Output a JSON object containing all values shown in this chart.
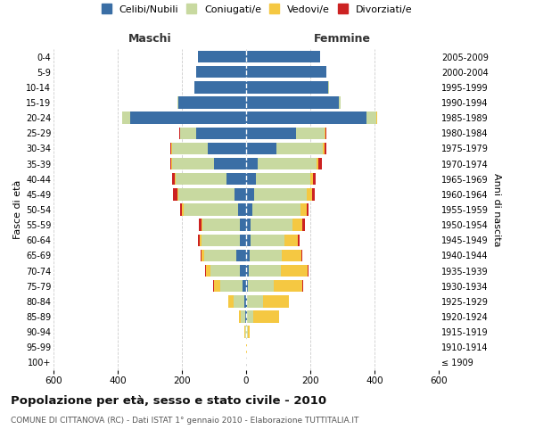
{
  "age_groups": [
    "100+",
    "95-99",
    "90-94",
    "85-89",
    "80-84",
    "75-79",
    "70-74",
    "65-69",
    "60-64",
    "55-59",
    "50-54",
    "45-49",
    "40-44",
    "35-39",
    "30-34",
    "25-29",
    "20-24",
    "15-19",
    "10-14",
    "5-9",
    "0-4"
  ],
  "birth_years": [
    "≤ 1909",
    "1910-1914",
    "1915-1919",
    "1920-1924",
    "1925-1929",
    "1930-1934",
    "1935-1939",
    "1940-1944",
    "1945-1949",
    "1950-1954",
    "1955-1959",
    "1960-1964",
    "1965-1969",
    "1970-1974",
    "1975-1979",
    "1980-1984",
    "1985-1989",
    "1990-1994",
    "1995-1999",
    "2000-2004",
    "2005-2009"
  ],
  "male": {
    "celibi": [
      0,
      0,
      1,
      3,
      5,
      10,
      20,
      30,
      20,
      20,
      25,
      35,
      60,
      100,
      120,
      155,
      360,
      210,
      160,
      155,
      150
    ],
    "coniugati": [
      0,
      1,
      3,
      15,
      35,
      70,
      90,
      100,
      120,
      115,
      170,
      175,
      160,
      130,
      110,
      50,
      25,
      5,
      2,
      0,
      0
    ],
    "vedovi": [
      0,
      0,
      2,
      5,
      15,
      20,
      15,
      10,
      5,
      5,
      5,
      5,
      3,
      2,
      2,
      1,
      1,
      0,
      0,
      0,
      0
    ],
    "divorziati": [
      0,
      0,
      0,
      0,
      1,
      2,
      2,
      3,
      5,
      8,
      5,
      12,
      8,
      5,
      3,
      1,
      1,
      0,
      0,
      0,
      0
    ]
  },
  "female": {
    "nubili": [
      0,
      0,
      1,
      2,
      3,
      5,
      8,
      12,
      15,
      15,
      20,
      25,
      30,
      35,
      95,
      155,
      375,
      290,
      255,
      250,
      230
    ],
    "coniugate": [
      0,
      1,
      5,
      20,
      50,
      80,
      100,
      100,
      105,
      130,
      150,
      165,
      170,
      185,
      145,
      90,
      30,
      5,
      2,
      1,
      0
    ],
    "vedove": [
      0,
      1,
      5,
      80,
      80,
      90,
      85,
      60,
      40,
      30,
      20,
      15,
      8,
      5,
      4,
      2,
      2,
      0,
      0,
      0,
      0
    ],
    "divorziate": [
      0,
      0,
      0,
      0,
      1,
      2,
      2,
      3,
      8,
      8,
      5,
      10,
      10,
      10,
      5,
      2,
      1,
      0,
      0,
      0,
      0
    ]
  },
  "colors": {
    "celibi": "#3a6ea5",
    "coniugati": "#c8d9a0",
    "vedovi": "#f5c842",
    "divorziati": "#cc2222"
  },
  "title": "Popolazione per età, sesso e stato civile - 2010",
  "subtitle": "COMUNE DI CITTANOVA (RC) - Dati ISTAT 1° gennaio 2010 - Elaborazione TUTTITALIA.IT",
  "xlabel_left": "Maschi",
  "xlabel_right": "Femmine",
  "ylabel_left": "Fasce di età",
  "ylabel_right": "Anni di nascita",
  "legend_labels": [
    "Celibi/Nubili",
    "Coniugati/e",
    "Vedovi/e",
    "Divorziati/e"
  ],
  "xlim": 600,
  "bg_color": "#ffffff",
  "grid_color": "#cccccc"
}
